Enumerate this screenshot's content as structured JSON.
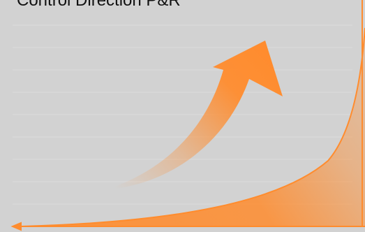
{
  "title": "Control Direction P&R",
  "colors": {
    "background": "#d2d2d2",
    "accent": "#ff8c2e",
    "gridline": "#dcdcdc",
    "text": "#111111"
  },
  "icons": {
    "curved_arrow": "curved-up-right-arrow-icon",
    "growth_curve": "exponential-growth-curve-icon"
  }
}
